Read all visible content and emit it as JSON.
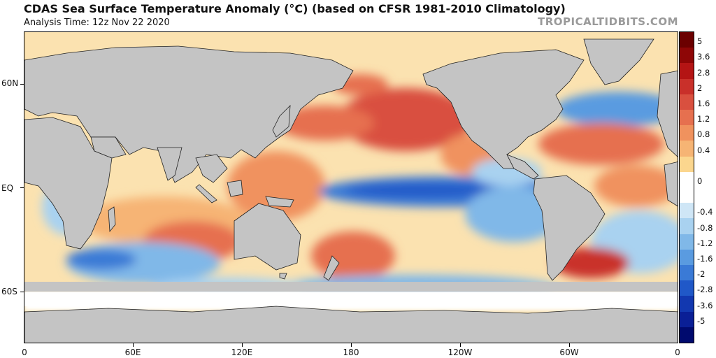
{
  "header": {
    "title": "CDAS Sea Surface Temperature Anomaly (°C) (based on CFSR 1981-2010 Climatology)",
    "subtitle": "Analysis Time: 12z Nov 22 2020",
    "watermark": "TROPICALTIDBITS.COM"
  },
  "map": {
    "lat_labels": [
      "60N",
      "EQ",
      "60S"
    ],
    "lon_labels": [
      "0",
      "60E",
      "120E",
      "180",
      "120W",
      "60W",
      "0"
    ]
  },
  "legend": {
    "labels": [
      "5",
      "3.6",
      "2.8",
      "2",
      "1.6",
      "1.2",
      "0.8",
      "0.4",
      "0",
      "-0.4",
      "-0.8",
      "-1.2",
      "-1.6",
      "-2",
      "-2.8",
      "-3.6",
      "-5"
    ],
    "colors": [
      "#6b0000",
      "#8e0606",
      "#b41414",
      "#c9302a",
      "#d9503f",
      "#e6704f",
      "#f0925e",
      "#f6b474",
      "#fbd68e",
      "#ffffff",
      "#ffffff",
      "#cfe6f6",
      "#a9d2f0",
      "#80b8e8",
      "#5a9be0",
      "#3a7ad6",
      "#2058c8",
      "#1238b0",
      "#0a1f96",
      "#000a6e"
    ]
  },
  "colors": {
    "land": "#c4c4c4",
    "ice": "#ffffff",
    "warm": "#e0573c",
    "cool": "#3d7fd9"
  }
}
